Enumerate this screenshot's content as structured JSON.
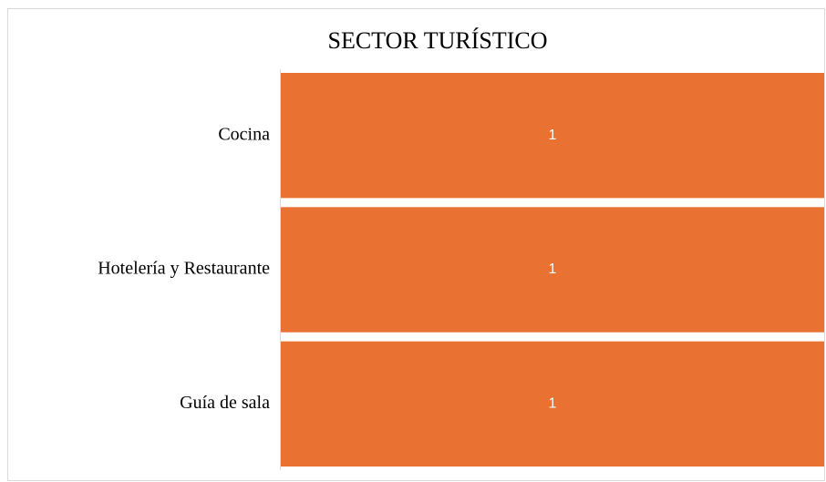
{
  "chart_data": {
    "type": "barh",
    "title": "SECTOR TURÍSTICO",
    "categories": [
      "Cocina",
      "Hotelería y Restaurante",
      "Guía de sala"
    ],
    "values": [
      1,
      1,
      1
    ],
    "color": "#e97132",
    "xlim": [
      0,
      1
    ]
  }
}
